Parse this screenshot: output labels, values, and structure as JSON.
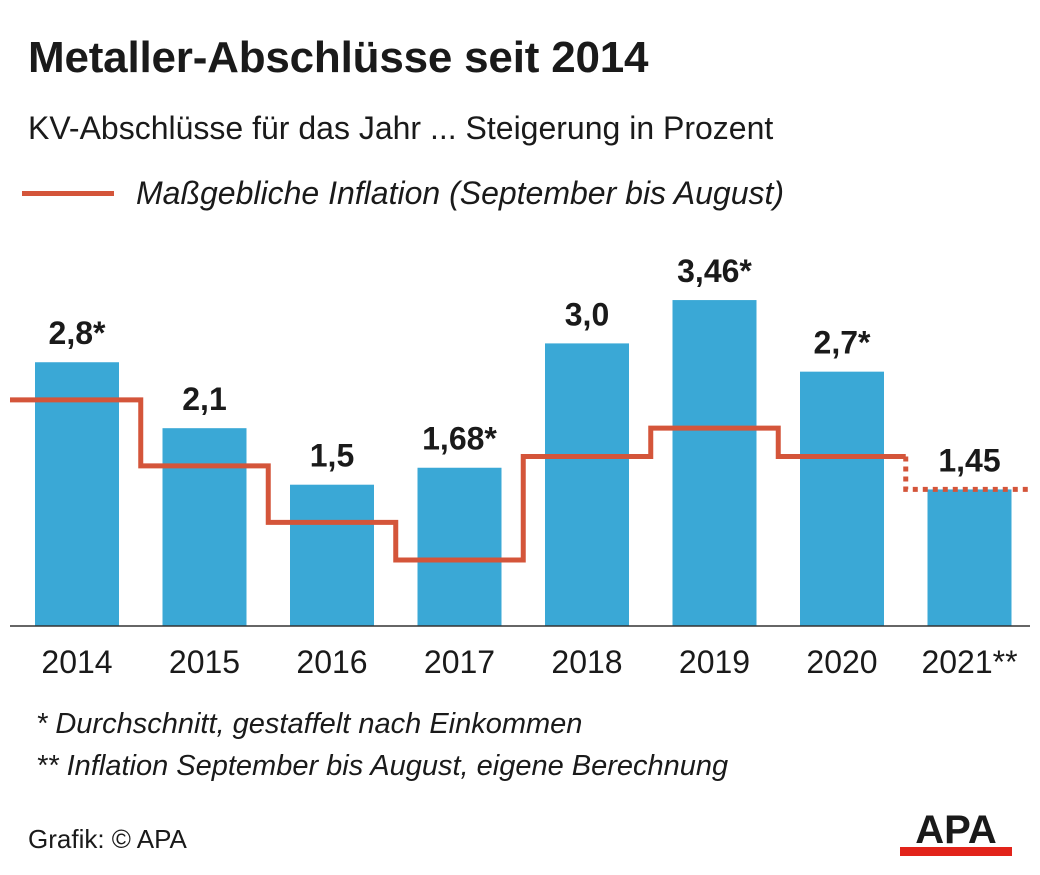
{
  "title": "Metaller-Abschlüsse seit 2014",
  "subtitle": "KV-Abschlüsse für das Jahr ... Steigerung in Prozent",
  "legend": {
    "inflation_label": "Maßgebliche Inflation (September bis August)"
  },
  "footnotes": {
    "note1": "* Durchschnitt, gestaffelt nach Einkommen",
    "note2": "** Inflation September bis August, eigene Berechnung"
  },
  "credit": "Grafik: © APA",
  "logo_text": "APA",
  "colors": {
    "bar": "#3aa8d6",
    "inflation_line": "#d4553a",
    "axis": "#333333",
    "logo_red": "#e2231a"
  },
  "chart_data": {
    "type": "bar",
    "ylabel": "",
    "xlabel": "",
    "ylim": [
      0,
      4
    ],
    "categories": [
      "2014",
      "2015",
      "2016",
      "2017",
      "2018",
      "2019",
      "2020",
      "2021**"
    ],
    "series": [
      {
        "name": "",
        "type": "bar",
        "values": [
          2.8,
          2.1,
          1.5,
          1.68,
          3.0,
          3.46,
          2.7,
          1.45
        ],
        "labels": [
          "2,8*",
          "2,1",
          "1,5",
          "1,68*",
          "3,0",
          "3,46*",
          "2,7*",
          "1,45"
        ]
      },
      {
        "name": "Maßgebliche Inflation (September bis August)",
        "type": "step-line",
        "values": [
          2.4,
          1.7,
          1.1,
          0.7,
          1.8,
          2.1,
          1.8,
          1.45
        ],
        "dotted_last": true
      }
    ]
  }
}
